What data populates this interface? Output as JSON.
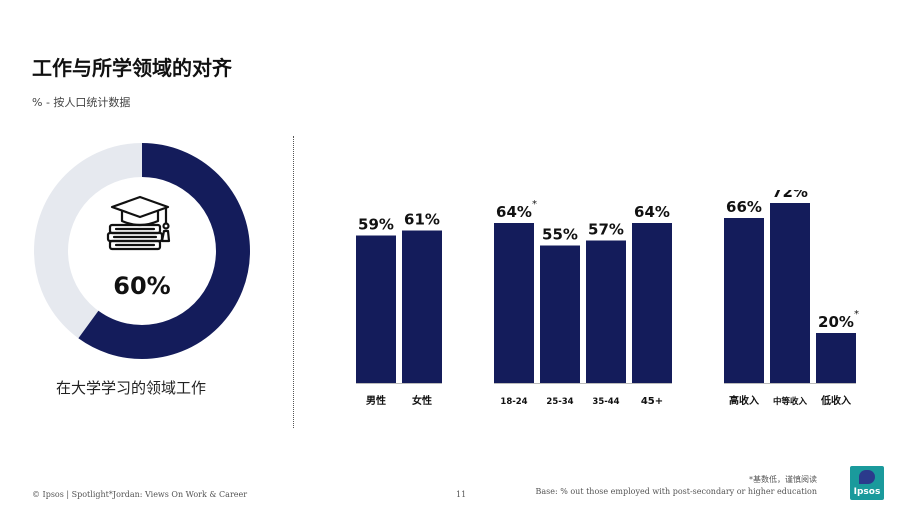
{
  "header": {
    "title": "工作与所学领域的对齐",
    "subtitle": "% - 按人口统计数据"
  },
  "donut": {
    "value": 60,
    "label": "60%",
    "caption": "在大学学习的领域工作",
    "icon": "graduation-cap-books-icon",
    "colors": {
      "filled": "#141c5b",
      "track": "#e6e9ef"
    }
  },
  "chart_data": {
    "type": "bar",
    "ylim": [
      0,
      100
    ],
    "grid": false,
    "color": "#141c5b",
    "groups": [
      {
        "name": "gender",
        "bars": [
          {
            "category": "男性",
            "value": 59,
            "label": "59%",
            "flag": ""
          },
          {
            "category": "女性",
            "value": 61,
            "label": "61%",
            "flag": ""
          }
        ]
      },
      {
        "name": "age",
        "bars": [
          {
            "category": "18-24",
            "value": 64,
            "label": "64%",
            "flag": "*"
          },
          {
            "category": "25-34",
            "value": 55,
            "label": "55%",
            "flag": ""
          },
          {
            "category": "35-44",
            "value": 57,
            "label": "57%",
            "flag": ""
          },
          {
            "category": "45+",
            "value": 64,
            "label": "64%",
            "flag": ""
          }
        ]
      },
      {
        "name": "income",
        "bars": [
          {
            "category": "高收入",
            "value": 66,
            "label": "66%",
            "flag": ""
          },
          {
            "category": "中等收入",
            "value": 72,
            "label": "72%",
            "flag": ""
          },
          {
            "category": "低收入",
            "value": 20,
            "label": "20%",
            "flag": "*"
          }
        ]
      }
    ]
  },
  "footer": {
    "source": "© Ipsos | Spotlight*Jordan: Views On Work & Career",
    "page": "11",
    "note": "*基数低，谨慎阅读",
    "base": "Base: % out those employed with post-secondary or higher education",
    "logo_text": "Ipsos"
  }
}
